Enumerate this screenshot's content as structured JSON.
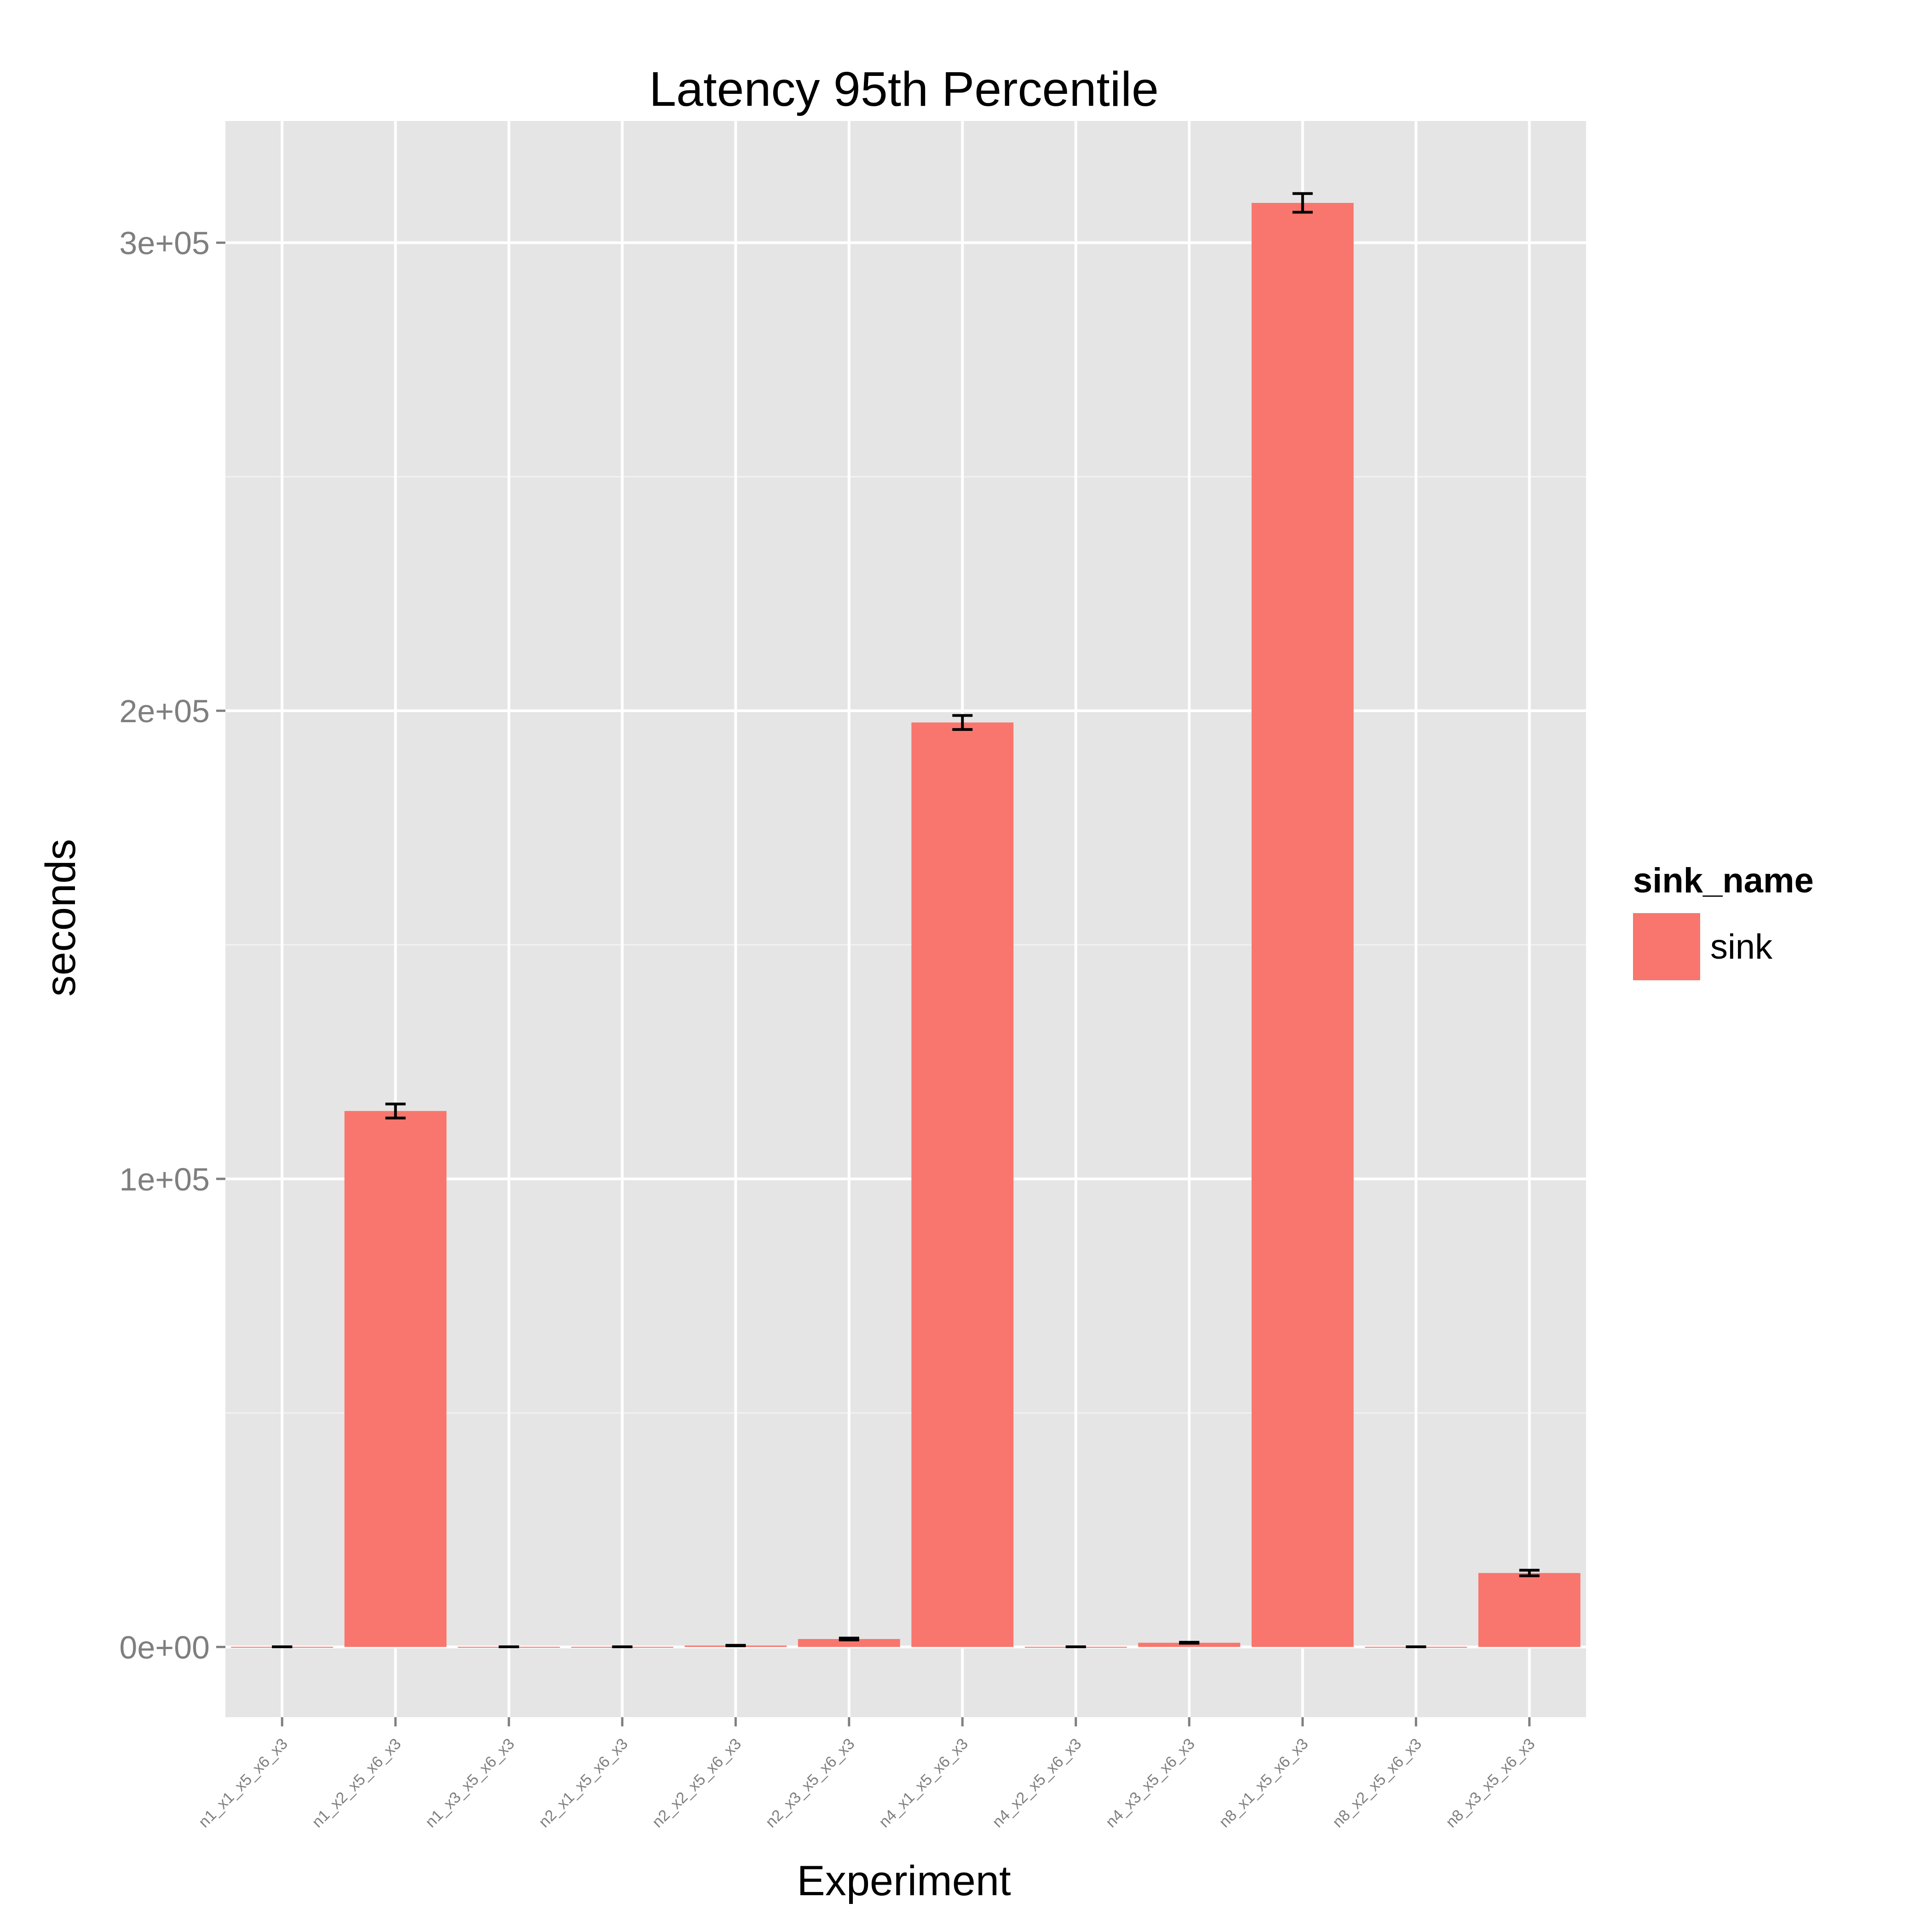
{
  "chart_data": {
    "type": "bar",
    "title": "Latency 95th Percentile",
    "xlabel": "Experiment",
    "ylabel": "seconds",
    "categories": [
      "n1_x1_x5_x6_x3",
      "n1_x2_x5_x6_x3",
      "n1_x3_x5_x6_x3",
      "n2_x1_x5_x6_x3",
      "n2_x2_x5_x6_x3",
      "n2_x3_x5_x6_x3",
      "n4_x1_x5_x6_x3",
      "n4_x2_x5_x6_x3",
      "n4_x3_x5_x6_x3",
      "n8_x1_x5_x6_x3",
      "n8_x2_x5_x6_x3",
      "n8_x3_x5_x6_x3"
    ],
    "series": [
      {
        "name": "sink",
        "values": [
          40,
          114500,
          40,
          40,
          300,
          1700,
          197500,
          40,
          900,
          308500,
          40,
          15800
        ],
        "error_low": [
          40,
          113000,
          40,
          40,
          250,
          1500,
          196000,
          40,
          800,
          306500,
          40,
          15200
        ],
        "error_high": [
          40,
          116000,
          40,
          40,
          350,
          1900,
          199000,
          40,
          1000,
          310500,
          40,
          16400
        ]
      }
    ],
    "ylim": [
      -15000,
      326000
    ],
    "yticks": [
      0,
      100000,
      200000,
      300000
    ],
    "ytick_labels": [
      "0e+00",
      "1e+05",
      "2e+05",
      "3e+05"
    ],
    "legend": {
      "title": "sink_name",
      "position": "right"
    },
    "grid": true,
    "colors": {
      "panel": "#e5e5e5",
      "grid_major": "#ffffff",
      "grid_minor": "#f2f2f2",
      "bar": "#f8766d",
      "error": "#000000",
      "tick_text": "#7f7f7f"
    }
  }
}
